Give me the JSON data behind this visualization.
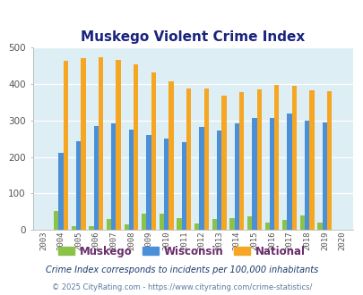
{
  "title": "Muskego Violent Crime Index",
  "years": [
    2003,
    2004,
    2005,
    2006,
    2007,
    2008,
    2009,
    2010,
    2011,
    2012,
    2013,
    2014,
    2015,
    2016,
    2017,
    2018,
    2019,
    2020
  ],
  "muskego": [
    0,
    52,
    10,
    10,
    30,
    16,
    46,
    44,
    33,
    17,
    30,
    33,
    37,
    20,
    27,
    40,
    20,
    0
  ],
  "wisconsin": [
    0,
    211,
    244,
    285,
    292,
    275,
    260,
    250,
    240,
    282,
    272,
    293,
    306,
    306,
    319,
    298,
    294,
    0
  ],
  "national": [
    0,
    463,
    469,
    473,
    466,
    454,
    432,
    406,
    387,
    387,
    367,
    378,
    384,
    397,
    394,
    381,
    380,
    0
  ],
  "muskego_color": "#8bc34a",
  "wisconsin_color": "#4a90d9",
  "national_color": "#f5a623",
  "bg_color": "#deeef5",
  "ylim": [
    0,
    500
  ],
  "yticks": [
    0,
    100,
    200,
    300,
    400,
    500
  ],
  "subtitle": "Crime Index corresponds to incidents per 100,000 inhabitants",
  "copyright": "© 2025 CityRating.com - https://www.cityrating.com/crime-statistics/",
  "title_color": "#1a237e",
  "subtitle_color": "#1a3a6b",
  "copyright_color": "#5c7a9e",
  "legend_labels": [
    "Muskego",
    "Wisconsin",
    "National"
  ],
  "legend_label_color": "#6b2d6b"
}
